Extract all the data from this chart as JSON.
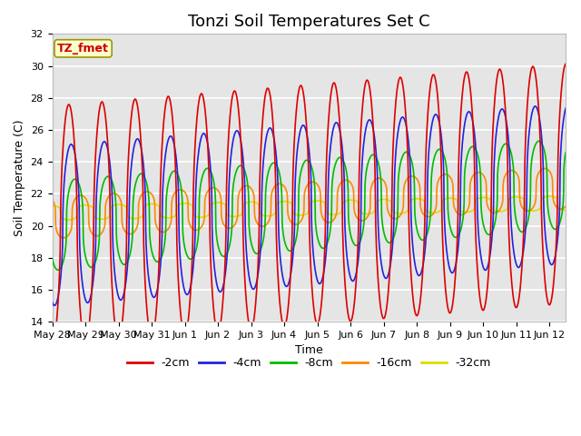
{
  "title": "Tonzi Soil Temperatures Set C",
  "xlabel": "Time",
  "ylabel": "Soil Temperature (C)",
  "ylim": [
    14,
    32
  ],
  "xlim_start": 0,
  "xlim_end": 15.5,
  "annotation": "TZ_fmet",
  "annotation_color": "#cc0000",
  "annotation_bg": "#ffffcc",
  "annotation_border": "#999900",
  "legend_labels": [
    "-2cm",
    "-4cm",
    "-8cm",
    "-16cm",
    "-32cm"
  ],
  "legend_colors": [
    "#dd0000",
    "#2222dd",
    "#00bb00",
    "#ff8800",
    "#dddd00"
  ],
  "tick_labels": [
    "May 28",
    "May 29",
    "May 30",
    "May 31",
    "Jun 1",
    "Jun 2",
    "Jun 3",
    "Jun 4",
    "Jun 5",
    "Jun 6",
    "Jun 7",
    "Jun 8",
    "Jun 9",
    "Jun 10",
    "Jun 11",
    "Jun 12"
  ],
  "tick_positions": [
    0,
    1,
    2,
    3,
    4,
    5,
    6,
    7,
    8,
    9,
    10,
    11,
    12,
    13,
    14,
    15
  ],
  "yticks": [
    14,
    16,
    18,
    20,
    22,
    24,
    26,
    28,
    30,
    32
  ],
  "background_color": "#ffffff",
  "plot_bg_color": "#e5e5e5",
  "grid_color": "#ffffff",
  "title_fontsize": 13,
  "axis_label_fontsize": 9,
  "tick_fontsize": 8,
  "legend_fontsize": 9
}
